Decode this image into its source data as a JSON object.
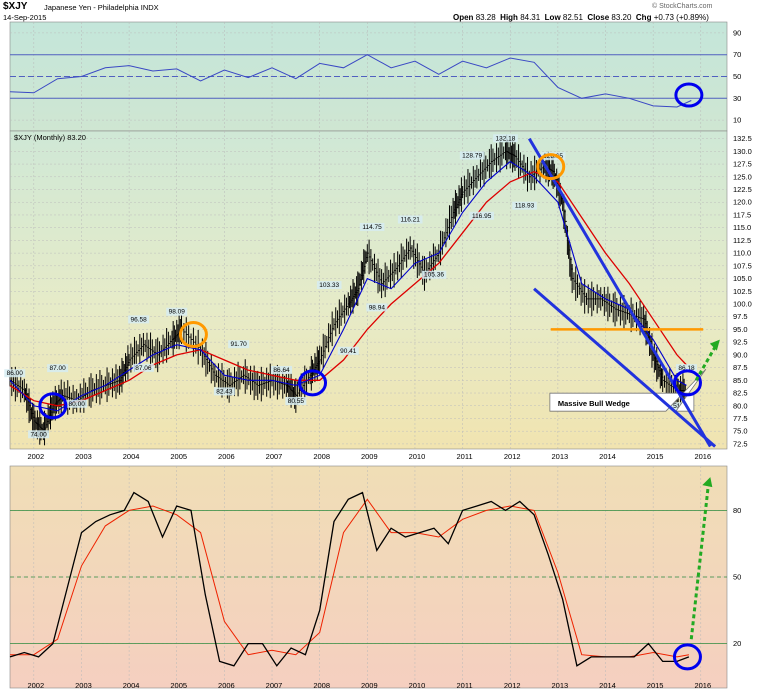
{
  "header": {
    "symbol": "$XJY",
    "subtitle": "Japanese Yen - Philadelphia INDX",
    "date": "14-Sep-2015",
    "open_label": "Open",
    "open": "83.28",
    "high_label": "High",
    "high": "84.31",
    "low_label": "Low",
    "low": "82.51",
    "close_label": "Close",
    "close": "83.20",
    "chg_label": "Chg",
    "chg": "+0.73 (+0.89%)",
    "watermark": "© StockCharts.com"
  },
  "chart_data": [
    {
      "type": "line",
      "panel": "RSI",
      "ylim": [
        0,
        100
      ],
      "yticks": [
        10,
        30,
        50,
        70,
        90
      ],
      "reference_lines": [
        30,
        50,
        70
      ],
      "x": [
        2001.5,
        2002.0,
        2002.5,
        2003.0,
        2003.5,
        2004.0,
        2004.5,
        2005.0,
        2005.5,
        2006.0,
        2006.5,
        2007.0,
        2007.5,
        2008.0,
        2008.5,
        2009.0,
        2009.5,
        2010.0,
        2010.5,
        2011.0,
        2011.5,
        2012.0,
        2012.5,
        2013.0,
        2013.5,
        2014.0,
        2014.5,
        2015.0,
        2015.5,
        2015.8
      ],
      "values": [
        36,
        35,
        48,
        50,
        58,
        60,
        55,
        57,
        46,
        56,
        49,
        58,
        48,
        62,
        58,
        70,
        58,
        64,
        52,
        64,
        58,
        67,
        63,
        40,
        30,
        34,
        30,
        23,
        22,
        28
      ],
      "annotations": [
        {
          "type": "circle",
          "color": "#0000ee",
          "x": 2015.75,
          "y": 33
        }
      ]
    },
    {
      "type": "line",
      "panel": "Price",
      "title": "$XJY (Monthly) 83.20",
      "ylim": [
        71.5,
        134
      ],
      "yticks": [
        72.5,
        75.0,
        77.5,
        80.0,
        82.5,
        85.0,
        87.5,
        90.0,
        92.5,
        95.0,
        97.5,
        100.0,
        102.5,
        105.0,
        107.5,
        110.0,
        112.5,
        115.0,
        117.5,
        120.0,
        122.5,
        125.0,
        127.5,
        130.0,
        132.5
      ],
      "xticks": [
        "2002",
        "2003",
        "2004",
        "2005",
        "2006",
        "2007",
        "2008",
        "2009",
        "2010",
        "2011",
        "2012",
        "2013",
        "2014",
        "2015",
        "2016"
      ],
      "series": [
        {
          "name": "Price",
          "color": "#000000",
          "x": [
            2001.5,
            2001.8,
            2002.0,
            2002.2,
            2002.4,
            2002.6,
            2002.9,
            2003.2,
            2003.5,
            2003.8,
            2004.0,
            2004.3,
            2004.6,
            2004.9,
            2005.1,
            2005.5,
            2005.8,
            2006.1,
            2006.4,
            2006.7,
            2007.0,
            2007.3,
            2007.5,
            2007.8,
            2008.0,
            2008.3,
            2008.6,
            2008.8,
            2009.0,
            2009.3,
            2009.6,
            2009.9,
            2010.2,
            2010.5,
            2010.8,
            2011.0,
            2011.3,
            2011.6,
            2011.9,
            2012.1,
            2012.4,
            2012.7,
            2012.9,
            2013.1,
            2013.3,
            2013.6,
            2013.9,
            2014.2,
            2014.5,
            2014.8,
            2015.0,
            2015.2,
            2015.5,
            2015.7
          ],
          "values": [
            85,
            83,
            77,
            75,
            80,
            82,
            81,
            83,
            84,
            85,
            89,
            92,
            90,
            93,
            95,
            91,
            86,
            84,
            86,
            84,
            85,
            84,
            82,
            86,
            89,
            96,
            100,
            103,
            110,
            104,
            107,
            111,
            106,
            110,
            118,
            122,
            125,
            128,
            130,
            129,
            125,
            127,
            126,
            120,
            105,
            101,
            101,
            99,
            98,
            97,
            90,
            85,
            83,
            83
          ]
        },
        {
          "name": "EMA short",
          "color": "#0000cc",
          "x": [
            2001.5,
            2002.0,
            2002.5,
            2003.0,
            2003.5,
            2004.0,
            2004.5,
            2005.0,
            2005.5,
            2006.0,
            2006.5,
            2007.0,
            2007.5,
            2008.0,
            2008.5,
            2009.0,
            2009.5,
            2010.0,
            2010.5,
            2011.0,
            2011.5,
            2012.0,
            2012.5,
            2013.0,
            2013.5,
            2014.0,
            2014.5,
            2015.0,
            2015.5,
            2015.7
          ],
          "values": [
            85,
            80,
            79,
            82,
            84,
            87,
            90,
            92,
            91,
            86,
            85,
            85,
            84,
            86,
            95,
            105,
            103,
            108,
            110,
            118,
            124,
            128,
            125,
            120,
            104,
            101,
            99,
            93,
            85,
            84
          ]
        },
        {
          "name": "EMA long",
          "color": "#dd0000",
          "x": [
            2001.5,
            2002.0,
            2002.5,
            2003.0,
            2003.5,
            2004.0,
            2004.5,
            2005.0,
            2005.5,
            2006.0,
            2006.5,
            2007.0,
            2007.5,
            2008.0,
            2008.5,
            2009.0,
            2009.5,
            2010.0,
            2010.5,
            2011.0,
            2011.5,
            2012.0,
            2012.5,
            2013.0,
            2013.5,
            2014.0,
            2014.5,
            2015.0,
            2015.5,
            2015.7
          ],
          "values": [
            84,
            81,
            80,
            81,
            83,
            85,
            88,
            90,
            91,
            89,
            87,
            86,
            85,
            85,
            89,
            95,
            100,
            104,
            108,
            114,
            120,
            124,
            126,
            124,
            117,
            110,
            104,
            97,
            90,
            88
          ]
        }
      ],
      "data_labels": [
        {
          "text": "86.00",
          "x": 2001.6,
          "y": 86.0
        },
        {
          "text": "74.00",
          "x": 2002.1,
          "y": 74.0
        },
        {
          "text": "87.00",
          "x": 2002.5,
          "y": 87.0
        },
        {
          "text": "80.00",
          "x": 2002.9,
          "y": 80.0
        },
        {
          "text": "96.58",
          "x": 2004.2,
          "y": 96.58
        },
        {
          "text": "87.06",
          "x": 2004.3,
          "y": 87.06
        },
        {
          "text": "98.09",
          "x": 2005.0,
          "y": 98.09
        },
        {
          "text": "91.70",
          "x": 2006.3,
          "y": 91.7
        },
        {
          "text": "82.43",
          "x": 2006.0,
          "y": 82.43
        },
        {
          "text": "86.64",
          "x": 2007.2,
          "y": 86.64
        },
        {
          "text": "80.55",
          "x": 2007.5,
          "y": 80.55
        },
        {
          "text": "103.33",
          "x": 2008.2,
          "y": 103.33
        },
        {
          "text": "90.41",
          "x": 2008.6,
          "y": 90.41
        },
        {
          "text": "98.94",
          "x": 2009.2,
          "y": 98.94
        },
        {
          "text": "114.75",
          "x": 2009.1,
          "y": 114.75
        },
        {
          "text": "116.21",
          "x": 2009.9,
          "y": 116.21
        },
        {
          "text": "105.36",
          "x": 2010.4,
          "y": 105.36
        },
        {
          "text": "128.79",
          "x": 2011.2,
          "y": 128.79
        },
        {
          "text": "116.95",
          "x": 2011.4,
          "y": 116.95
        },
        {
          "text": "132.18",
          "x": 2011.9,
          "y": 132.18
        },
        {
          "text": "118.93",
          "x": 2012.3,
          "y": 118.93
        },
        {
          "text": "128.65",
          "x": 2012.9,
          "y": 128.65
        },
        {
          "text": "79.51",
          "x": 2015.4,
          "y": 79.51
        },
        {
          "text": "86.18",
          "x": 2015.7,
          "y": 87.0
        }
      ],
      "annotations": [
        {
          "type": "text",
          "text": "Massive Bull Wedge",
          "x": 2013.0,
          "y": 80.5
        },
        {
          "type": "hline",
          "color": "#ff9900",
          "y": 95.0,
          "x_from": 2012.85,
          "x_to": 2016.05
        },
        {
          "type": "trendline",
          "color": "#2233dd",
          "from": [
            2012.4,
            132.5
          ],
          "to": [
            2016.2,
            72.0
          ]
        },
        {
          "type": "trendline",
          "color": "#2233dd",
          "from": [
            2012.5,
            103.0
          ],
          "to": [
            2016.3,
            72.0
          ]
        },
        {
          "type": "circle",
          "color": "#0000ee",
          "x": 2002.4,
          "y": 80.0
        },
        {
          "type": "circle",
          "color": "#0000ee",
          "x": 2007.85,
          "y": 84.5
        },
        {
          "type": "circle",
          "color": "#0000ee",
          "x": 2015.72,
          "y": 84.5
        },
        {
          "type": "circle",
          "color": "#ff9900",
          "x": 2005.35,
          "y": 94.0
        },
        {
          "type": "circle",
          "color": "#ff9900",
          "x": 2012.85,
          "y": 127.0
        },
        {
          "type": "arrow",
          "color": "#22aa22",
          "from": [
            2015.9,
            85.0
          ],
          "to": [
            2016.4,
            93.0
          ]
        }
      ]
    },
    {
      "type": "line",
      "panel": "Slow Stochastic",
      "ylim": [
        0,
        100
      ],
      "yticks": [
        20,
        50,
        80
      ],
      "reference_lines": [
        20,
        50,
        80
      ],
      "xticks": [
        "2002",
        "2003",
        "2004",
        "2005",
        "2006",
        "2007",
        "2008",
        "2009",
        "2010",
        "2011",
        "2012",
        "2013",
        "2014",
        "2015",
        "2016"
      ],
      "series": [
        {
          "name": "%K",
          "color": "#000000",
          "x": [
            2001.5,
            2001.8,
            2002.1,
            2002.4,
            2002.7,
            2003.0,
            2003.3,
            2003.6,
            2003.9,
            2004.1,
            2004.4,
            2004.7,
            2005.0,
            2005.3,
            2005.6,
            2005.9,
            2006.2,
            2006.5,
            2006.8,
            2007.1,
            2007.4,
            2007.7,
            2008.0,
            2008.3,
            2008.6,
            2008.9,
            2009.2,
            2009.5,
            2009.8,
            2010.1,
            2010.4,
            2010.7,
            2011.0,
            2011.3,
            2011.6,
            2011.9,
            2012.2,
            2012.5,
            2012.8,
            2013.1,
            2013.4,
            2013.7,
            2014.0,
            2014.3,
            2014.6,
            2014.9,
            2015.2,
            2015.5,
            2015.75
          ],
          "values": [
            14,
            16,
            14,
            20,
            45,
            70,
            75,
            78,
            80,
            88,
            84,
            68,
            82,
            80,
            42,
            12,
            10,
            20,
            20,
            10,
            18,
            15,
            35,
            75,
            85,
            88,
            62,
            72,
            68,
            70,
            72,
            65,
            80,
            82,
            84,
            80,
            84,
            78,
            60,
            40,
            10,
            14,
            14,
            14,
            14,
            20,
            12,
            12,
            14
          ]
        },
        {
          "name": "%D",
          "color": "#ee2200",
          "x": [
            2001.5,
            2002.0,
            2002.5,
            2003.0,
            2003.5,
            2004.0,
            2004.5,
            2005.0,
            2005.5,
            2006.0,
            2006.5,
            2007.0,
            2007.5,
            2008.0,
            2008.5,
            2009.0,
            2009.5,
            2010.0,
            2010.5,
            2011.0,
            2011.5,
            2012.0,
            2012.5,
            2013.0,
            2013.5,
            2014.0,
            2014.5,
            2015.0,
            2015.5,
            2015.75
          ],
          "values": [
            15,
            15,
            22,
            55,
            73,
            80,
            82,
            78,
            70,
            30,
            15,
            17,
            15,
            25,
            70,
            85,
            70,
            70,
            68,
            76,
            80,
            82,
            80,
            52,
            15,
            14,
            14,
            16,
            14,
            15
          ]
        }
      ],
      "annotations": [
        {
          "type": "circle",
          "color": "#0000ee",
          "x": 2015.72,
          "y": 14
        },
        {
          "type": "arrow",
          "color": "#22aa22",
          "from": [
            2015.8,
            22
          ],
          "to": [
            2016.2,
            95
          ]
        }
      ]
    }
  ]
}
